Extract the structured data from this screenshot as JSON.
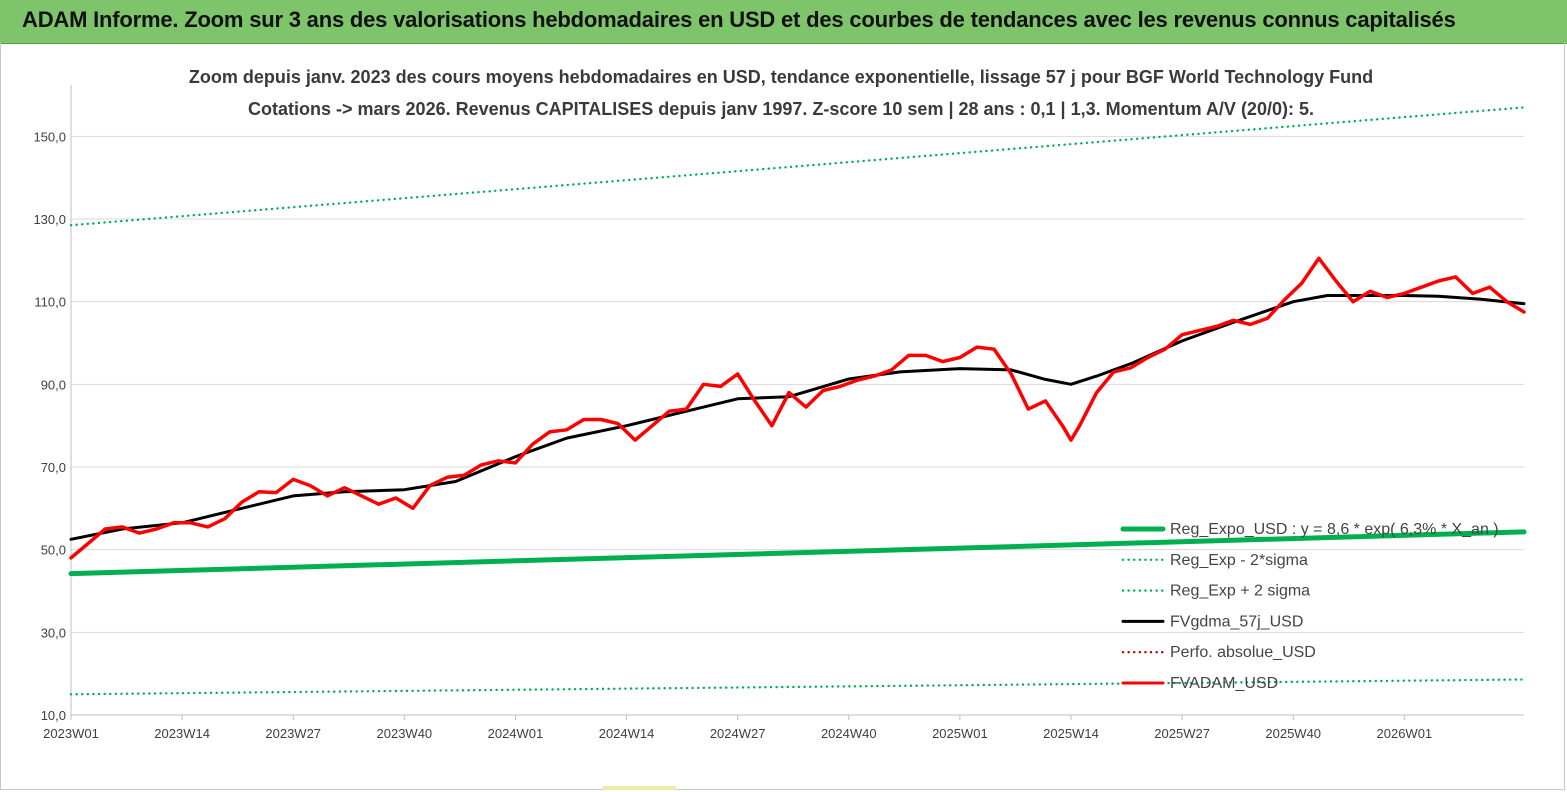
{
  "header": {
    "title": "ADAM Informe. Zoom sur 3 ans des valorisations hebdomadaires en USD et des courbes de tendances avec les revenus connus capitalisés"
  },
  "colors": {
    "banner": "#7dc46a",
    "trend": "#00b050",
    "fvgdma": "#000000",
    "fvadam": "#ff0000",
    "perfo": "#c00000",
    "grid": "#d9d9d9"
  },
  "chart_data": {
    "type": "line",
    "title_line1": "Zoom depuis janv. 2023 des cours moyens hebdomadaires en USD, tendance exponentielle, lissage 57 j pour BGF World Technology Fund",
    "title_line2": "Cotations -> mars 2026. Revenus CAPITALISES depuis janv 1997. Z-score 10 sem | 28 ans : 0,1 | 1,3. Momentum A/V (20/0): 5.",
    "ylim": [
      10,
      160
    ],
    "ytick_values": [
      10,
      30,
      50,
      70,
      90,
      110,
      130,
      150
    ],
    "ytick_labels": [
      "10,0",
      "30,0",
      "50,0",
      "70,0",
      "90,0",
      "110,0",
      "130,0",
      "150,0"
    ],
    "x_tick_labels": [
      "2023W01",
      "2023W14",
      "2023W27",
      "2023W40",
      "2024W01",
      "2024W14",
      "2024W27",
      "2024W40",
      "2025W01",
      "2025W14",
      "2025W27",
      "2025W40",
      "2026W01"
    ],
    "x_tick_weeks": [
      0,
      13,
      26,
      39,
      52,
      65,
      78,
      91,
      104,
      117,
      130,
      143,
      156
    ],
    "n_weeks": 170,
    "grid": "horizontal",
    "legend_position": "bottom-right",
    "legend": [
      {
        "label": "Reg_Expo_USD : y = 8,6 * exp( 6,3% * X_an )",
        "color": "#00b050",
        "style": "solid-thick"
      },
      {
        "label": "Reg_Exp - 2*sigma",
        "color": "#00b050",
        "style": "dotted"
      },
      {
        "label": "Reg_Exp + 2 sigma",
        "color": "#00b050",
        "style": "dotted"
      },
      {
        "label": "FVgdma_57j_USD",
        "color": "#000000",
        "style": "solid"
      },
      {
        "label": "Perfo. absolue_USD",
        "color": "#c00000",
        "style": "dotted"
      },
      {
        "label": "FVADAM_USD",
        "color": "#ff0000",
        "style": "solid"
      }
    ],
    "series": [
      {
        "name": "Reg_Expo_USD : y = 8,6 * exp( 6,3% * X_an )",
        "color": "#00b050",
        "style": "solid-thick",
        "x": [
          0,
          170
        ],
        "y": [
          44.2,
          54.3
        ]
      },
      {
        "name": "Reg_Exp - 2*sigma",
        "color": "#00b050",
        "style": "dotted",
        "x": [
          0,
          170
        ],
        "y": [
          15.0,
          18.6
        ]
      },
      {
        "name": "Reg_Exp + 2 sigma",
        "color": "#00b050",
        "style": "dotted",
        "x": [
          0,
          170
        ],
        "y": [
          128.5,
          157.0
        ]
      },
      {
        "name": "FVgdma_57j_USD",
        "color": "#000000",
        "style": "solid",
        "x": [
          0,
          6,
          13,
          20,
          26,
          32,
          39,
          45,
          52,
          58,
          65,
          72,
          78,
          84,
          91,
          97,
          104,
          110,
          114,
          117,
          120,
          124,
          130,
          136,
          143,
          147,
          152,
          156,
          160,
          165,
          170
        ],
        "y": [
          52.5,
          55,
          56.5,
          60,
          63,
          64,
          64.5,
          66.5,
          72.5,
          77,
          80,
          83.5,
          86.5,
          87,
          91.3,
          93,
          93.8,
          93.5,
          91.2,
          90,
          92,
          95,
          100.5,
          105,
          110,
          111.5,
          111.5,
          111.5,
          111.3,
          110.6,
          109.5
        ]
      },
      {
        "name": "FVADAM_USD",
        "color": "#ff0000",
        "style": "solid",
        "x": [
          0,
          2,
          4,
          6,
          8,
          10,
          12,
          14,
          16,
          18,
          20,
          22,
          24,
          26,
          28,
          30,
          32,
          34,
          36,
          38,
          40,
          42,
          44,
          46,
          48,
          50,
          52,
          54,
          56,
          58,
          60,
          62,
          64,
          66,
          68,
          70,
          72,
          74,
          76,
          78,
          80,
          82,
          84,
          86,
          88,
          90,
          92,
          94,
          96,
          98,
          100,
          102,
          104,
          106,
          108,
          110,
          112,
          114,
          116,
          117,
          118,
          120,
          122,
          124,
          126,
          128,
          130,
          132,
          134,
          136,
          138,
          140,
          142,
          144,
          146,
          148,
          150,
          152,
          154,
          156,
          158,
          160,
          162,
          164,
          166,
          168,
          170
        ],
        "y": [
          48,
          51.5,
          55,
          55.5,
          54,
          55,
          56.5,
          56.5,
          55.5,
          57.5,
          61.5,
          64,
          63.8,
          67,
          65.5,
          63,
          65,
          63,
          61,
          62.5,
          60,
          65.5,
          67.5,
          68,
          70.5,
          71.5,
          71,
          75.5,
          78.5,
          79,
          81.5,
          81.5,
          80.5,
          76.5,
          80,
          83.5,
          84,
          90,
          89.5,
          92.5,
          86,
          80,
          88,
          84.5,
          88.5,
          89.5,
          91,
          92,
          93.5,
          97,
          97,
          95.5,
          96.5,
          99,
          98.5,
          92.5,
          84,
          86,
          80,
          76.5,
          80,
          88,
          93,
          94,
          96.5,
          98.5,
          102,
          103,
          104,
          105.5,
          104.5,
          106,
          110.5,
          114.5,
          120.5,
          115,
          110,
          112.5,
          111,
          112,
          113.5,
          115,
          116,
          112,
          113.5,
          110,
          107.5
        ]
      }
    ]
  }
}
